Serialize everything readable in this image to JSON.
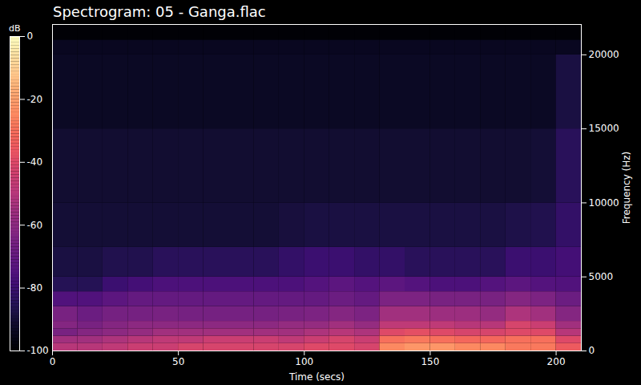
{
  "chart_data": {
    "type": "heatmap",
    "title": "Spectrogram: 05 - Ganga.flac",
    "x_label": "Time (secs)",
    "y_label": "Frequency (Hz)",
    "xlim": [
      0,
      210
    ],
    "xticks": [
      0,
      50,
      100,
      150,
      200
    ],
    "ylim": [
      0,
      22050
    ],
    "yticks": [
      0,
      5000,
      10000,
      15000,
      20000
    ],
    "color": "magma",
    "x_bins": [
      0,
      10,
      20,
      30,
      40,
      50,
      60,
      70,
      80,
      90,
      100,
      110,
      120,
      130,
      140,
      150,
      160,
      170,
      180,
      190,
      200,
      210
    ],
    "y_bins": [
      0,
      500,
      1000,
      1500,
      2000,
      3000,
      4000,
      5000,
      7000,
      10000,
      15000,
      20000,
      21000,
      22050
    ],
    "cells": [
      [
        -50,
        -50,
        -48,
        -45,
        -45,
        -42,
        -42,
        -42,
        -42,
        -42,
        -40,
        -40,
        -42,
        -25,
        -22,
        -22,
        -25,
        -25,
        -28,
        -28,
        -35
      ],
      [
        -55,
        -55,
        -52,
        -50,
        -48,
        -48,
        -45,
        -45,
        -45,
        -48,
        -45,
        -42,
        -45,
        -30,
        -28,
        -30,
        -32,
        -32,
        -30,
        -30,
        -40
      ],
      [
        -65,
        -62,
        -60,
        -58,
        -55,
        -55,
        -55,
        -55,
        -55,
        -55,
        -52,
        -50,
        -52,
        -40,
        -38,
        -40,
        -42,
        -42,
        -40,
        -40,
        -50
      ],
      [
        -62,
        -65,
        -62,
        -60,
        -60,
        -60,
        -60,
        -60,
        -60,
        -58,
        -58,
        -55,
        -58,
        -48,
        -48,
        -48,
        -50,
        -50,
        -42,
        -45,
        -55
      ],
      [
        -65,
        -68,
        -66,
        -66,
        -65,
        -66,
        -66,
        -66,
        -66,
        -65,
        -64,
        -62,
        -64,
        -55,
        -55,
        -56,
        -56,
        -58,
        -52,
        -55,
        -62
      ],
      [
        -75,
        -75,
        -72,
        -70,
        -70,
        -70,
        -70,
        -70,
        -70,
        -70,
        -70,
        -68,
        -70,
        -64,
        -64,
        -65,
        -65,
        -65,
        -62,
        -64,
        -68
      ],
      [
        -85,
        -85,
        -80,
        -78,
        -76,
        -76,
        -76,
        -76,
        -76,
        -76,
        -74,
        -72,
        -74,
        -72,
        -74,
        -76,
        -76,
        -74,
        -72,
        -74,
        -75
      ],
      [
        -88,
        -88,
        -86,
        -86,
        -84,
        -84,
        -84,
        -84,
        -84,
        -82,
        -80,
        -80,
        -82,
        -82,
        -84,
        -84,
        -84,
        -84,
        -80,
        -80,
        -78
      ],
      [
        -90,
        -90,
        -90,
        -90,
        -90,
        -90,
        -90,
        -90,
        -90,
        -89,
        -88,
        -88,
        -88,
        -88,
        -88,
        -88,
        -88,
        -88,
        -87,
        -86,
        -82
      ],
      [
        -91,
        -91,
        -91,
        -91,
        -91,
        -91,
        -91,
        -91,
        -91,
        -91,
        -91,
        -91,
        -91,
        -91,
        -91,
        -91,
        -91,
        -91,
        -91,
        -90,
        -84
      ],
      [
        -93,
        -93,
        -93,
        -93,
        -93,
        -93,
        -93,
        -93,
        -93,
        -93,
        -93,
        -93,
        -93,
        -93,
        -93,
        -93,
        -93,
        -93,
        -93,
        -93,
        -88
      ],
      [
        -94,
        -94,
        -94,
        -94,
        -94,
        -94,
        -94,
        -94,
        -94,
        -94,
        -94,
        -94,
        -94,
        -94,
        -94,
        -94,
        -94,
        -94,
        -94,
        -94,
        -94
      ],
      [
        -99,
        -99,
        -99,
        -99,
        -99,
        -99,
        -99,
        -99,
        -99,
        -99,
        -99,
        -99,
        -99,
        -99,
        -99,
        -99,
        -99,
        -99,
        -99,
        -99,
        -99
      ]
    ],
    "colorbar": {
      "label": "dB",
      "range": [
        -100,
        0
      ],
      "ticks": [
        -100,
        -80,
        -60,
        -40,
        -20,
        0
      ]
    }
  }
}
